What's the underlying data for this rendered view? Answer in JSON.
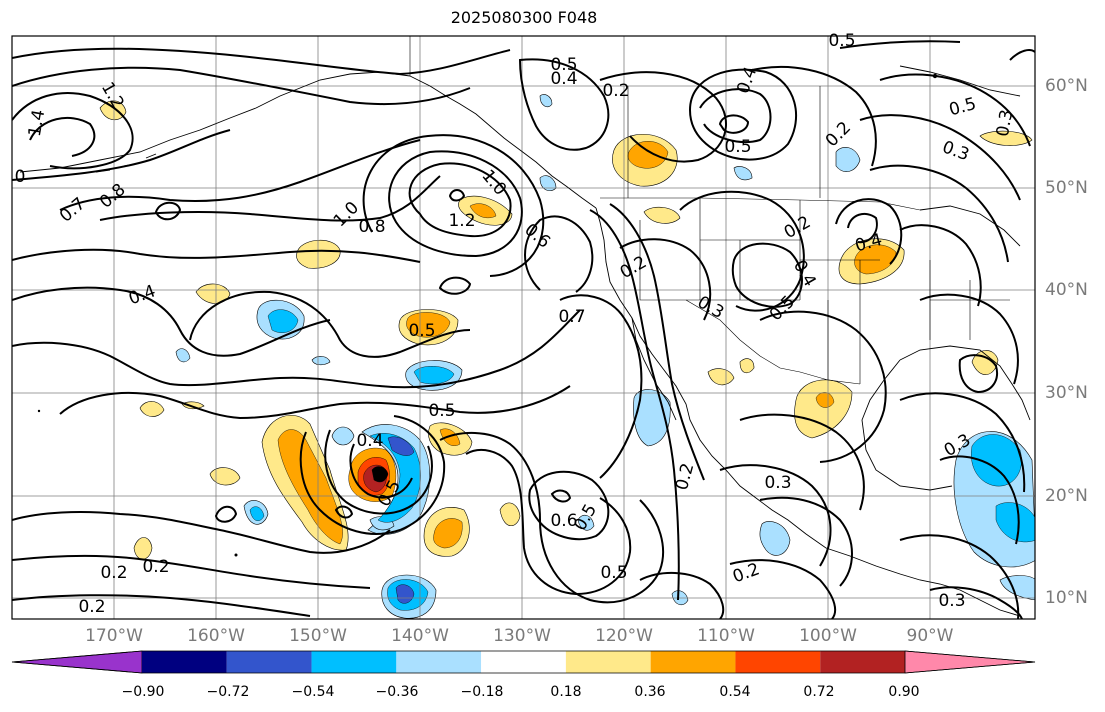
{
  "title": "2025080300 F048",
  "map": {
    "projection": "equirectangular",
    "lon_range": [
      -180,
      -79
    ],
    "lat_range": [
      7,
      65
    ],
    "gridlines": true,
    "coastlines": true,
    "country_and_state_borders": true
  },
  "axes": {
    "longitude_labels": [
      "170°W",
      "160°W",
      "150°W",
      "140°W",
      "130°W",
      "120°W",
      "110°W",
      "100°W",
      "90°W"
    ],
    "latitude_labels": [
      "60°N",
      "50°N",
      "40°N",
      "30°N",
      "20°N",
      "10°N"
    ]
  },
  "colorbar": {
    "ticks": [
      "−0.90",
      "−0.72",
      "−0.54",
      "−0.36",
      "−0.18",
      "0.18",
      "0.36",
      "0.54",
      "0.72",
      "0.90"
    ],
    "colors": [
      "#9933cc",
      "#000080",
      "#3355cc",
      "#00bfff",
      "#aae0ff",
      "#ffffff",
      "#ffe98a",
      "#ffa500",
      "#ff4500",
      "#b22222",
      "#ff88aa"
    ]
  },
  "contour_labels": [
    "1.4",
    "1.2",
    "0",
    "0.7",
    "0.8",
    "1.0",
    "0.8",
    "1.2",
    "1.0",
    "0.6",
    "0.4",
    "0.5",
    "0.7",
    "0.5",
    "0.4",
    "0.5",
    "0.2",
    "0.2",
    "0.2",
    "0.6",
    "0.5",
    "0.5",
    "0.2",
    "0.2",
    "0.2",
    "0.5",
    "0.4",
    "0.5",
    "0.2",
    "0.5",
    "0.4",
    "0.3",
    "0.5",
    "0.4",
    "0.2",
    "0.3",
    "0.5",
    "0.3",
    "0.4",
    "0.3",
    "0.3",
    "0.3",
    "0.2"
  ]
}
